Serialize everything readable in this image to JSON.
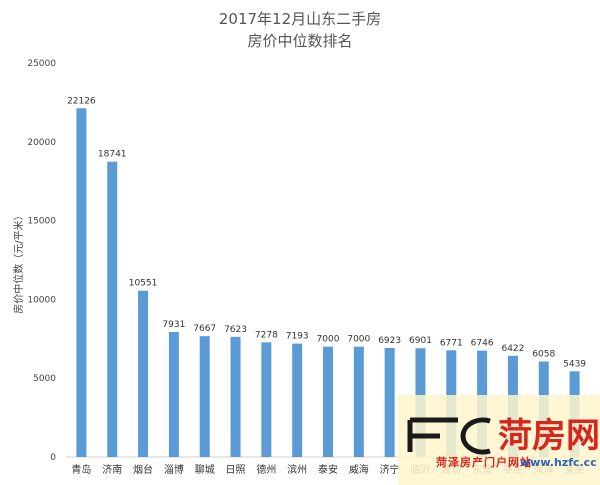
{
  "chart_data": {
    "type": "bar",
    "title": "2017年12月山东二手房",
    "subtitle": "房价中位数排名",
    "xlabel": "",
    "ylabel": "房价中位数（元/平米）",
    "ylim": [
      0,
      25000
    ],
    "yticks": [
      0,
      5000,
      10000,
      15000,
      20000,
      25000
    ],
    "grid": false,
    "bar_color": "#5b9bd5",
    "categories": [
      "青岛",
      "济南",
      "烟台",
      "淄博",
      "聊城",
      "日照",
      "德州",
      "滨州",
      "泰安",
      "威海",
      "济宁",
      "临沂",
      "潍坊",
      "东营",
      "枣庄",
      "菏泽",
      "莱芜"
    ],
    "values": [
      22126,
      18741,
      10551,
      7931,
      7667,
      7623,
      7278,
      7193,
      7000,
      7000,
      6923,
      6901,
      6771,
      6746,
      6422,
      6058,
      5439
    ]
  },
  "watermark": {
    "logo_text": "FC",
    "brand": "菏房网",
    "slogan": "菏泽房产门户网站",
    "url": "www.hzfc.cc",
    "red": "#d9261c",
    "blue": "#2a63b6"
  }
}
